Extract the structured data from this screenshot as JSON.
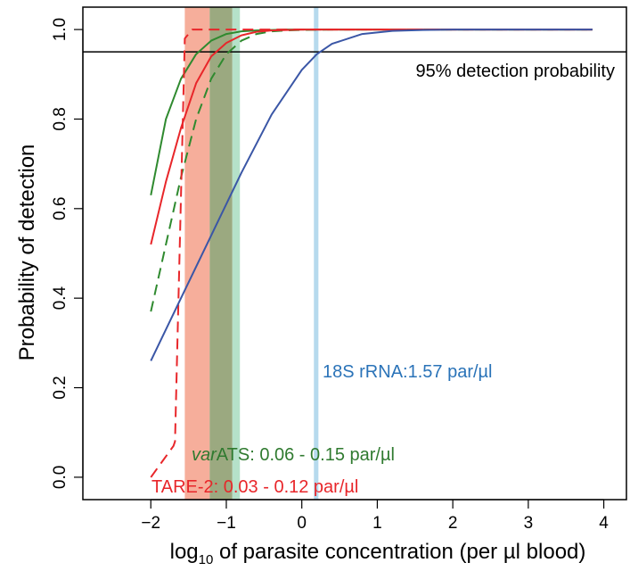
{
  "chart_data": {
    "type": "line",
    "xlabel": {
      "prefix": "log",
      "subscript": "10",
      "suffix": " of parasite concentration (per µl blood)"
    },
    "ylabel": "Probability of detection",
    "xlim": [
      -2.9,
      4.3
    ],
    "ylim": [
      -0.05,
      1.05
    ],
    "x_ticks": [
      -2,
      -1,
      0,
      1,
      2,
      3,
      4
    ],
    "y_ticks": [
      0.0,
      0.2,
      0.4,
      0.6,
      0.8,
      1.0
    ],
    "y_tick_labels": [
      "0.0",
      "0.2",
      "0.4",
      "0.6",
      "0.8",
      "1.0"
    ],
    "grid": false,
    "threshold": {
      "y": 0.95,
      "label": "95% detection probability"
    },
    "bands": [
      {
        "x0": -1.55,
        "x1": -1.22,
        "color": "#f4a08a"
      },
      {
        "x0": -1.22,
        "x1": -0.92,
        "color": "#8a9a6a"
      },
      {
        "x0": -0.92,
        "x1": -0.82,
        "color": "#a8dcc0"
      },
      {
        "x0": 0.16,
        "x1": 0.22,
        "color": "#a9d4ea"
      }
    ],
    "series": [
      {
        "color": "#2f8a2f",
        "dash": false,
        "x": [
          -2.0,
          -1.8,
          -1.6,
          -1.4,
          -1.2,
          -1.0,
          -0.8,
          -0.6,
          -0.4,
          -0.2,
          0.0,
          0.4,
          1.0,
          2.0,
          3.0,
          3.85
        ],
        "y": [
          0.63,
          0.8,
          0.89,
          0.945,
          0.975,
          0.99,
          0.996,
          0.998,
          0.999,
          1.0,
          1.0,
          1.0,
          1.0,
          1.0,
          1.0,
          1.0
        ]
      },
      {
        "color": "#2f8a2f",
        "dash": true,
        "x": [
          -2.0,
          -1.8,
          -1.6,
          -1.4,
          -1.2,
          -1.0,
          -0.8,
          -0.6,
          -0.4,
          -0.2,
          0.0,
          0.4,
          1.0,
          2.0,
          3.0,
          3.85
        ],
        "y": [
          0.37,
          0.52,
          0.67,
          0.8,
          0.89,
          0.945,
          0.975,
          0.99,
          0.996,
          0.998,
          0.999,
          1.0,
          1.0,
          1.0,
          1.0,
          1.0
        ]
      },
      {
        "color": "#e8262a",
        "dash": false,
        "x": [
          -2.0,
          -1.8,
          -1.6,
          -1.4,
          -1.2,
          -1.0,
          -0.8,
          -0.6,
          -0.4,
          -0.2,
          0.0,
          0.4,
          1.0,
          2.0,
          3.0,
          3.85
        ],
        "y": [
          0.52,
          0.66,
          0.78,
          0.88,
          0.94,
          0.97,
          0.987,
          0.995,
          0.998,
          0.999,
          1.0,
          1.0,
          1.0,
          1.0,
          1.0,
          1.0
        ]
      },
      {
        "color": "#e8262a",
        "dash": true,
        "x": [
          -2.0,
          -1.7,
          -1.68,
          -1.55,
          -1.45,
          -1.3,
          -1.0,
          0.0,
          1.0,
          2.0,
          3.0,
          3.85
        ],
        "y": [
          0.0,
          0.07,
          0.08,
          0.98,
          1.0,
          1.0,
          1.0,
          1.0,
          1.0,
          1.0,
          1.0,
          1.0
        ]
      },
      {
        "color": "#3a56a6",
        "dash": false,
        "x": [
          -2.0,
          -1.6,
          -1.2,
          -0.8,
          -0.4,
          0.0,
          0.2,
          0.4,
          0.8,
          1.2,
          1.6,
          2.0,
          2.5,
          3.0,
          3.85
        ],
        "y": [
          0.26,
          0.4,
          0.54,
          0.68,
          0.81,
          0.91,
          0.945,
          0.968,
          0.99,
          0.997,
          0.999,
          1.0,
          1.0,
          1.0,
          1.0
        ]
      }
    ],
    "annotations": {
      "rrna": {
        "text": "18S rRNA:1.57 par/µl",
        "color": "#2a73b8"
      },
      "varats": {
        "italic": "var",
        "text": "ATS: 0.06 - 0.15 par/µl",
        "color": "#2f7a2f"
      },
      "tare": {
        "text": "TARE-2: 0.03 - 0.12 par/µl",
        "color": "#e8262a"
      }
    }
  }
}
